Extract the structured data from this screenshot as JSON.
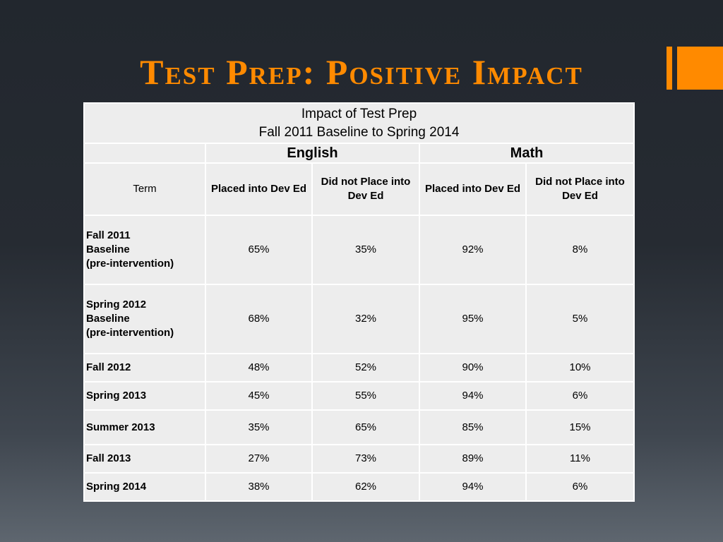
{
  "slide": {
    "title": "Test Prep:  Positive Impact"
  },
  "table": {
    "caption_line1": "Impact of Test Prep",
    "caption_line2": "Fall 2011 Baseline to Spring 2014",
    "groups": [
      "English",
      "Math"
    ],
    "term_header": "Term",
    "sub_headers": [
      "Placed into Dev Ed",
      "Did not Place into Dev Ed",
      "Placed into Dev Ed",
      "Did not Place into Dev Ed"
    ],
    "rows": [
      {
        "term_lines": [
          "Fall 2011",
          "Baseline",
          "(pre-intervention)"
        ],
        "values": [
          "65%",
          "35%",
          "92%",
          "8%"
        ]
      },
      {
        "term_lines": [
          "Spring 2012",
          "Baseline",
          "(pre-intervention)"
        ],
        "values": [
          "68%",
          "32%",
          "95%",
          "5%"
        ]
      },
      {
        "term_lines": [
          "Fall 2012"
        ],
        "values": [
          "48%",
          "52%",
          "90%",
          "10%"
        ]
      },
      {
        "term_lines": [
          "Spring 2013"
        ],
        "values": [
          "45%",
          "55%",
          "94%",
          "6%"
        ]
      },
      {
        "term_lines": [
          "Summer 2013"
        ],
        "values": [
          "35%",
          "65%",
          "85%",
          "15%"
        ]
      },
      {
        "term_lines": [
          "Fall 2013"
        ],
        "values": [
          "27%",
          "73%",
          "89%",
          "11%"
        ]
      },
      {
        "term_lines": [
          "Spring 2014"
        ],
        "values": [
          "38%",
          "62%",
          "94%",
          "6%"
        ]
      }
    ]
  }
}
